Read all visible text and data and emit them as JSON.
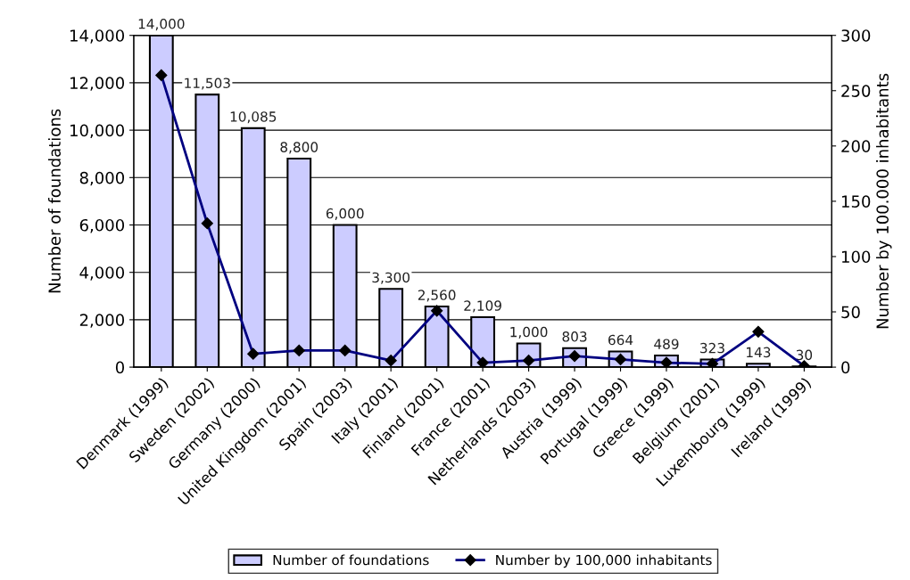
{
  "chart_data": {
    "type": "bar",
    "categories": [
      "Denmark (1999)",
      "Sweden (2002)",
      "Germany (2000)",
      "United Kingdom (2001)",
      "Spain (2003)",
      "Italy (2001)",
      "Finland (2001)",
      "France (2001)",
      "Netherlands (2003)",
      "Austria (1999)",
      "Portugal (1999)",
      "Greece (1999)",
      "Belgium (2001)",
      "Luxembourg (1999)",
      "Ireland (1999)"
    ],
    "series": [
      {
        "name": "Number of foundations",
        "color": "#ccccff",
        "values": [
          14000,
          11503,
          10085,
          8800,
          6000,
          3300,
          2560,
          2109,
          1000,
          803,
          664,
          489,
          323,
          143,
          30
        ],
        "value_labels": [
          "14,000",
          "11,503",
          "10,085",
          "8,800",
          "6,000",
          "3,300",
          "2,560",
          "2,109",
          "1,000",
          "803",
          "664",
          "489",
          "323",
          "143",
          "30"
        ]
      },
      {
        "name": "Number by 100,000 inhabitants",
        "type": "line",
        "axis": "y2",
        "color": "#000080",
        "marker": "diamond",
        "values": [
          264,
          130,
          12,
          15,
          15,
          6,
          51,
          4,
          6,
          10,
          7,
          4,
          3,
          32,
          1
        ]
      }
    ],
    "ylabel": "Number of foundations",
    "y2label": "Number by 100.000 inhabitants",
    "ylim": [
      0,
      14000
    ],
    "yticks": [
      0,
      {
        "value": 2000,
        "label": "2,000"
      },
      {
        "value": 4000,
        "label": "4,000"
      },
      {
        "value": 6000,
        "label": "6,000"
      },
      {
        "value": 8000,
        "label": "8,000"
      },
      {
        "value": 10000,
        "label": "10,000"
      },
      {
        "value": 12000,
        "label": "12,000"
      },
      {
        "value": 14000,
        "label": "14,000"
      }
    ],
    "y2lim": [
      0,
      300
    ],
    "y2ticks": [
      0,
      50,
      100,
      150,
      200,
      250,
      300
    ],
    "grid": "y",
    "legend": "bottom"
  }
}
